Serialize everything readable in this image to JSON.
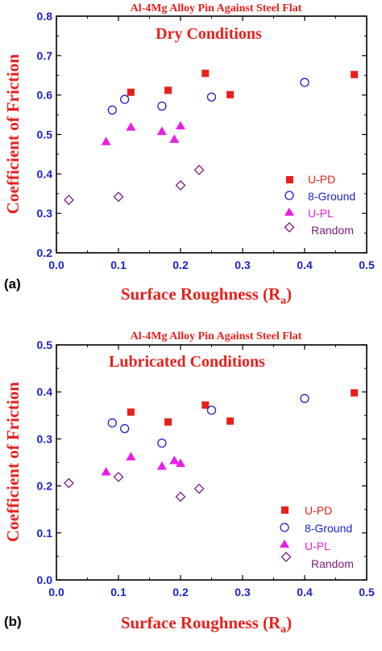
{
  "colors": {
    "title": "#e8201c",
    "tick": "#1c22c9",
    "u_pd": "#e8201c",
    "ground": "#1c22c9",
    "u_pl": "#e81ee8",
    "random": "#7d1a7d"
  },
  "chart_data": [
    {
      "panel_label": "(a)",
      "type": "scatter",
      "title": "Al-4Mg Alloy Pin Against Steel Flat",
      "subtitle": "Dry Conditions",
      "xlabel_main": "Surface Roughness (R",
      "xlabel_sub": "a",
      "xlabel_close": ")",
      "ylabel": "Coefficient of Friction",
      "xlim": [
        0.0,
        0.5
      ],
      "ylim": [
        0.2,
        0.8
      ],
      "xticks": [
        "0.0",
        "0.1",
        "0.2",
        "0.3",
        "0.4",
        "0.5"
      ],
      "yticks": [
        "0.2",
        "0.3",
        "0.4",
        "0.5",
        "0.6",
        "0.7",
        "0.8"
      ],
      "legend_position": "bottom-right",
      "series": [
        {
          "name": "U-PD",
          "marker": "filled-square",
          "color": "#e8201c",
          "points": [
            [
              0.12,
              0.607
            ],
            [
              0.18,
              0.612
            ],
            [
              0.24,
              0.655
            ],
            [
              0.28,
              0.601
            ],
            [
              0.48,
              0.652
            ]
          ]
        },
        {
          "name": "8-Ground",
          "marker": "open-circle",
          "color": "#1c22c9",
          "points": [
            [
              0.09,
              0.562
            ],
            [
              0.11,
              0.589
            ],
            [
              0.17,
              0.572
            ],
            [
              0.25,
              0.595
            ],
            [
              0.4,
              0.632
            ]
          ]
        },
        {
          "name": "U-PL",
          "marker": "filled-triangle",
          "color": "#e81ee8",
          "points": [
            [
              0.08,
              0.482
            ],
            [
              0.12,
              0.519
            ],
            [
              0.17,
              0.508
            ],
            [
              0.19,
              0.488
            ],
            [
              0.2,
              0.522
            ]
          ]
        },
        {
          "name": "Random",
          "marker": "open-diamond",
          "color": "#7d1a7d",
          "points": [
            [
              0.02,
              0.334
            ],
            [
              0.1,
              0.342
            ],
            [
              0.2,
              0.371
            ],
            [
              0.23,
              0.41
            ]
          ]
        }
      ]
    },
    {
      "panel_label": "(b)",
      "type": "scatter",
      "title": "Al-4Mg Alloy Pin Against Steel Flat",
      "subtitle": "Lubricated Conditions",
      "xlabel_main": "Surface Roughness (R",
      "xlabel_sub": "a",
      "xlabel_close": ")",
      "ylabel": "Coefficient of Friction",
      "xlim": [
        0.0,
        0.5
      ],
      "ylim": [
        0.0,
        0.5
      ],
      "xticks": [
        "0.0",
        "0.1",
        "0.2",
        "0.3",
        "0.4",
        "0.5"
      ],
      "yticks": [
        "0.0",
        "0.1",
        "0.2",
        "0.3",
        "0.4",
        "0.5"
      ],
      "legend_position": "bottom-right",
      "series": [
        {
          "name": "U-PD",
          "marker": "filled-square",
          "color": "#e8201c",
          "points": [
            [
              0.12,
              0.357
            ],
            [
              0.18,
              0.336
            ],
            [
              0.24,
              0.372
            ],
            [
              0.28,
              0.338
            ],
            [
              0.48,
              0.398
            ]
          ]
        },
        {
          "name": "8-Ground",
          "marker": "open-circle",
          "color": "#1c22c9",
          "points": [
            [
              0.09,
              0.334
            ],
            [
              0.11,
              0.322
            ],
            [
              0.17,
              0.291
            ],
            [
              0.25,
              0.361
            ],
            [
              0.4,
              0.386
            ]
          ]
        },
        {
          "name": "U-PL",
          "marker": "filled-triangle",
          "color": "#e81ee8",
          "points": [
            [
              0.08,
              0.23
            ],
            [
              0.12,
              0.262
            ],
            [
              0.17,
              0.242
            ],
            [
              0.19,
              0.254
            ],
            [
              0.2,
              0.248
            ]
          ]
        },
        {
          "name": "Random",
          "marker": "open-diamond",
          "color": "#7d1a7d",
          "points": [
            [
              0.02,
              0.206
            ],
            [
              0.1,
              0.219
            ],
            [
              0.2,
              0.177
            ],
            [
              0.23,
              0.194
            ]
          ]
        }
      ]
    }
  ]
}
